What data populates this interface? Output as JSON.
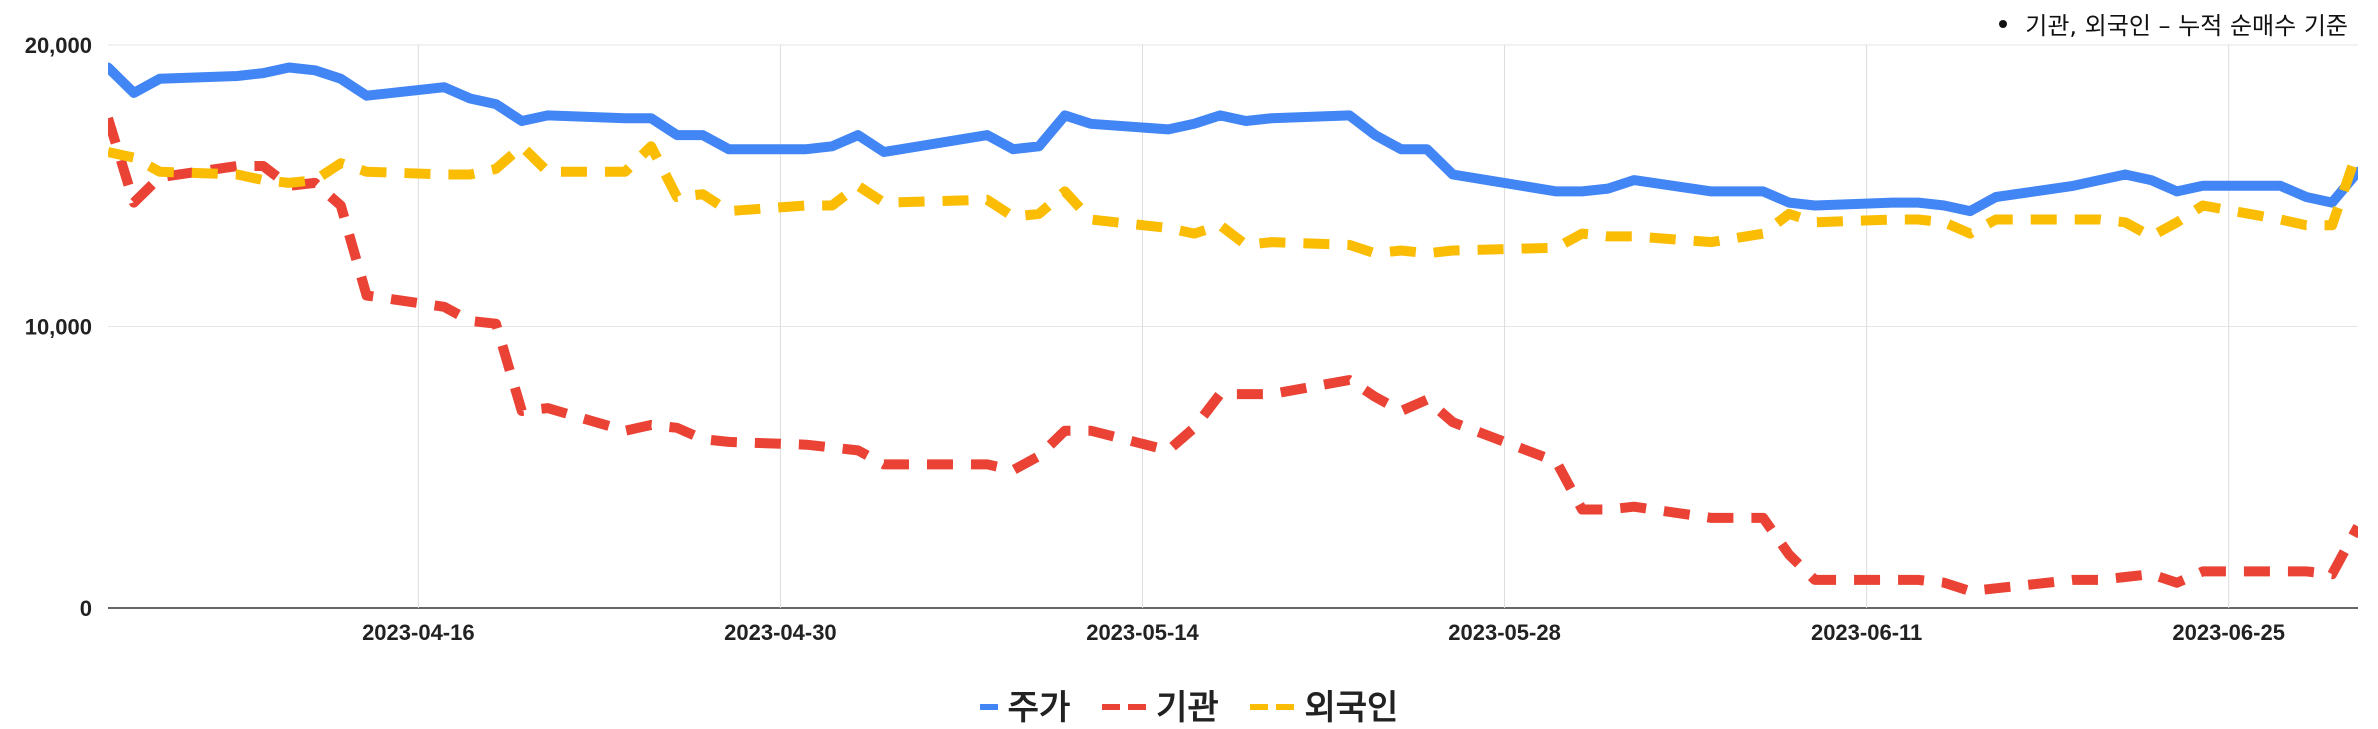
{
  "note": "기관, 외국인 – 누적 순매수 기준",
  "legend": {
    "items": [
      {
        "name": "주가",
        "color": "#4285F4",
        "style": "solid"
      },
      {
        "name": "기관",
        "color": "#EA4335",
        "style": "dashed"
      },
      {
        "name": "외국인",
        "color": "#FBBC04",
        "style": "dashed"
      }
    ]
  },
  "chart_data": {
    "type": "line",
    "title": "",
    "xlabel": "",
    "ylabel": "",
    "ylim": [
      0,
      20000
    ],
    "xlim": [
      "2023-04-04",
      "2023-06-30"
    ],
    "yticks": [
      0,
      10000,
      20000
    ],
    "ytick_labels": [
      "0",
      "10,000",
      "20,000"
    ],
    "xticks": [
      "2023-04-16",
      "2023-04-30",
      "2023-05-14",
      "2023-05-28",
      "2023-06-11",
      "2023-06-25"
    ],
    "grid": true,
    "legend_position": "bottom",
    "series": [
      {
        "name": "주가",
        "color": "#4285F4",
        "style": "solid",
        "points": [
          [
            "2023-04-04",
            19200
          ],
          [
            "2023-04-05",
            18300
          ],
          [
            "2023-04-06",
            18800
          ],
          [
            "2023-04-09",
            18900
          ],
          [
            "2023-04-10",
            19000
          ],
          [
            "2023-04-11",
            19200
          ],
          [
            "2023-04-12",
            19100
          ],
          [
            "2023-04-13",
            18800
          ],
          [
            "2023-04-14",
            18200
          ],
          [
            "2023-04-17",
            18500
          ],
          [
            "2023-04-18",
            18100
          ],
          [
            "2023-04-19",
            17900
          ],
          [
            "2023-04-20",
            17300
          ],
          [
            "2023-04-21",
            17500
          ],
          [
            "2023-04-24",
            17400
          ],
          [
            "2023-04-25",
            17400
          ],
          [
            "2023-04-26",
            16800
          ],
          [
            "2023-04-27",
            16800
          ],
          [
            "2023-04-28",
            16300
          ],
          [
            "2023-05-01",
            16300
          ],
          [
            "2023-05-02",
            16400
          ],
          [
            "2023-05-03",
            16800
          ],
          [
            "2023-05-04",
            16200
          ],
          [
            "2023-05-08",
            16800
          ],
          [
            "2023-05-09",
            16300
          ],
          [
            "2023-05-10",
            16400
          ],
          [
            "2023-05-11",
            17500
          ],
          [
            "2023-05-12",
            17200
          ],
          [
            "2023-05-15",
            17000
          ],
          [
            "2023-05-16",
            17200
          ],
          [
            "2023-05-17",
            17500
          ],
          [
            "2023-05-18",
            17300
          ],
          [
            "2023-05-19",
            17400
          ],
          [
            "2023-05-22",
            17500
          ],
          [
            "2023-05-23",
            16800
          ],
          [
            "2023-05-24",
            16300
          ],
          [
            "2023-05-25",
            16300
          ],
          [
            "2023-05-26",
            15400
          ],
          [
            "2023-05-30",
            14800
          ],
          [
            "2023-05-31",
            14800
          ],
          [
            "2023-06-01",
            14900
          ],
          [
            "2023-06-02",
            15200
          ],
          [
            "2023-06-05",
            14800
          ],
          [
            "2023-06-07",
            14800
          ],
          [
            "2023-06-08",
            14400
          ],
          [
            "2023-06-09",
            14300
          ],
          [
            "2023-06-12",
            14400
          ],
          [
            "2023-06-13",
            14400
          ],
          [
            "2023-06-14",
            14300
          ],
          [
            "2023-06-15",
            14100
          ],
          [
            "2023-06-16",
            14600
          ],
          [
            "2023-06-19",
            15000
          ],
          [
            "2023-06-20",
            15200
          ],
          [
            "2023-06-21",
            15400
          ],
          [
            "2023-06-22",
            15200
          ],
          [
            "2023-06-23",
            14800
          ],
          [
            "2023-06-24",
            15000
          ],
          [
            "2023-06-27",
            15000
          ],
          [
            "2023-06-28",
            14600
          ],
          [
            "2023-06-29",
            14400
          ],
          [
            "2023-06-30",
            15500
          ]
        ]
      },
      {
        "name": "기관",
        "color": "#EA4335",
        "style": "dashed",
        "points": [
          [
            "2023-04-04",
            17400
          ],
          [
            "2023-04-05",
            14400
          ],
          [
            "2023-04-06",
            15300
          ],
          [
            "2023-04-09",
            15700
          ],
          [
            "2023-04-10",
            15700
          ],
          [
            "2023-04-11",
            15000
          ],
          [
            "2023-04-12",
            15100
          ],
          [
            "2023-04-13",
            14300
          ],
          [
            "2023-04-14",
            11100
          ],
          [
            "2023-04-17",
            10700
          ],
          [
            "2023-04-18",
            10200
          ],
          [
            "2023-04-19",
            10100
          ],
          [
            "2023-04-20",
            7000
          ],
          [
            "2023-04-21",
            7100
          ],
          [
            "2023-04-24",
            6300
          ],
          [
            "2023-04-25",
            6500
          ],
          [
            "2023-04-26",
            6400
          ],
          [
            "2023-04-27",
            6000
          ],
          [
            "2023-04-28",
            5900
          ],
          [
            "2023-05-01",
            5800
          ],
          [
            "2023-05-02",
            5700
          ],
          [
            "2023-05-03",
            5600
          ],
          [
            "2023-05-04",
            5100
          ],
          [
            "2023-05-08",
            5100
          ],
          [
            "2023-05-09",
            4900
          ],
          [
            "2023-05-10",
            5400
          ],
          [
            "2023-05-11",
            6300
          ],
          [
            "2023-05-12",
            6300
          ],
          [
            "2023-05-15",
            5600
          ],
          [
            "2023-05-16",
            6400
          ],
          [
            "2023-05-17",
            7600
          ],
          [
            "2023-05-18",
            7600
          ],
          [
            "2023-05-19",
            7600
          ],
          [
            "2023-05-22",
            8100
          ],
          [
            "2023-05-23",
            7500
          ],
          [
            "2023-05-24",
            7000
          ],
          [
            "2023-05-25",
            7400
          ],
          [
            "2023-05-26",
            6600
          ],
          [
            "2023-05-30",
            5200
          ],
          [
            "2023-05-31",
            3500
          ],
          [
            "2023-06-01",
            3500
          ],
          [
            "2023-06-02",
            3600
          ],
          [
            "2023-06-05",
            3200
          ],
          [
            "2023-06-07",
            3200
          ],
          [
            "2023-06-08",
            1900
          ],
          [
            "2023-06-09",
            1000
          ],
          [
            "2023-06-12",
            1000
          ],
          [
            "2023-06-13",
            1000
          ],
          [
            "2023-06-14",
            900
          ],
          [
            "2023-06-15",
            600
          ],
          [
            "2023-06-16",
            700
          ],
          [
            "2023-06-19",
            1000
          ],
          [
            "2023-06-20",
            1000
          ],
          [
            "2023-06-21",
            1100
          ],
          [
            "2023-06-22",
            1200
          ],
          [
            "2023-06-23",
            900
          ],
          [
            "2023-06-24",
            1300
          ],
          [
            "2023-06-27",
            1300
          ],
          [
            "2023-06-28",
            1300
          ],
          [
            "2023-06-29",
            1200
          ],
          [
            "2023-06-30",
            2900
          ]
        ]
      },
      {
        "name": "외국인",
        "color": "#FBBC04",
        "style": "dashed",
        "points": [
          [
            "2023-04-04",
            16200
          ],
          [
            "2023-04-05",
            16000
          ],
          [
            "2023-04-06",
            15500
          ],
          [
            "2023-04-09",
            15400
          ],
          [
            "2023-04-10",
            15200
          ],
          [
            "2023-04-11",
            15100
          ],
          [
            "2023-04-12",
            15200
          ],
          [
            "2023-04-13",
            15800
          ],
          [
            "2023-04-14",
            15500
          ],
          [
            "2023-04-17",
            15400
          ],
          [
            "2023-04-18",
            15400
          ],
          [
            "2023-04-19",
            15600
          ],
          [
            "2023-04-20",
            16400
          ],
          [
            "2023-04-21",
            15500
          ],
          [
            "2023-04-24",
            15500
          ],
          [
            "2023-04-25",
            16400
          ],
          [
            "2023-04-26",
            14600
          ],
          [
            "2023-04-27",
            14700
          ],
          [
            "2023-04-28",
            14100
          ],
          [
            "2023-05-01",
            14300
          ],
          [
            "2023-05-02",
            14300
          ],
          [
            "2023-05-03",
            15000
          ],
          [
            "2023-05-04",
            14400
          ],
          [
            "2023-05-08",
            14500
          ],
          [
            "2023-05-09",
            13900
          ],
          [
            "2023-05-10",
            14000
          ],
          [
            "2023-05-11",
            14800
          ],
          [
            "2023-05-12",
            13800
          ],
          [
            "2023-05-15",
            13500
          ],
          [
            "2023-05-16",
            13300
          ],
          [
            "2023-05-17",
            13600
          ],
          [
            "2023-05-18",
            12900
          ],
          [
            "2023-05-19",
            13000
          ],
          [
            "2023-05-22",
            12900
          ],
          [
            "2023-05-23",
            12600
          ],
          [
            "2023-05-24",
            12700
          ],
          [
            "2023-05-25",
            12600
          ],
          [
            "2023-05-26",
            12700
          ],
          [
            "2023-05-30",
            12800
          ],
          [
            "2023-05-31",
            13300
          ],
          [
            "2023-06-01",
            13200
          ],
          [
            "2023-06-02",
            13200
          ],
          [
            "2023-06-05",
            13000
          ],
          [
            "2023-06-07",
            13300
          ],
          [
            "2023-06-08",
            14000
          ],
          [
            "2023-06-09",
            13700
          ],
          [
            "2023-06-12",
            13800
          ],
          [
            "2023-06-13",
            13800
          ],
          [
            "2023-06-14",
            13700
          ],
          [
            "2023-06-15",
            13300
          ],
          [
            "2023-06-16",
            13800
          ],
          [
            "2023-06-19",
            13800
          ],
          [
            "2023-06-20",
            13800
          ],
          [
            "2023-06-21",
            13700
          ],
          [
            "2023-06-22",
            13200
          ],
          [
            "2023-06-23",
            13700
          ],
          [
            "2023-06-24",
            14300
          ],
          [
            "2023-06-27",
            13800
          ],
          [
            "2023-06-28",
            13600
          ],
          [
            "2023-06-29",
            13600
          ],
          [
            "2023-06-30",
            16300
          ]
        ]
      }
    ]
  }
}
